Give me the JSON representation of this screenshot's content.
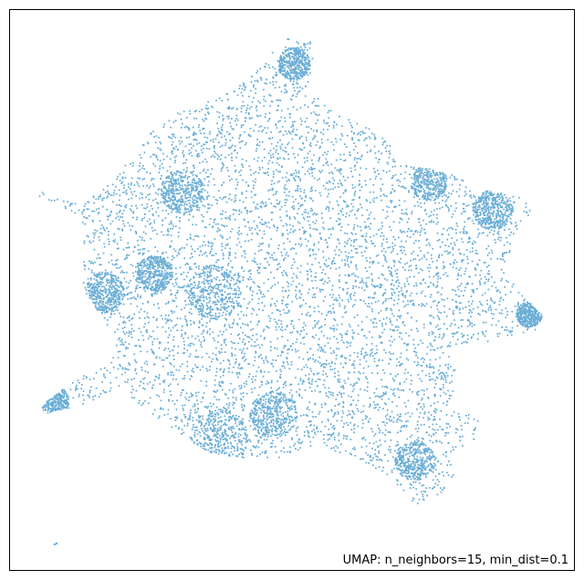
{
  "chart_data": {
    "type": "scatter",
    "title": "",
    "xlabel": "",
    "ylabel": "",
    "annotation": "UMAP: n_neighbors=15, min_dist=0.1",
    "legend": "none",
    "grid": false,
    "axis_ticks": false,
    "xlim": [
      0,
      1
    ],
    "ylim": [
      0,
      1
    ],
    "series": [
      {
        "color": "#6baed6",
        "marker_shape": "circle",
        "approx_point_count": 10000,
        "description": "single dense cloud shaped like an irregular star with protrusions toward top, left, right, lower-left and bottom-right; one isolated point near bottom-left"
      }
    ]
  }
}
